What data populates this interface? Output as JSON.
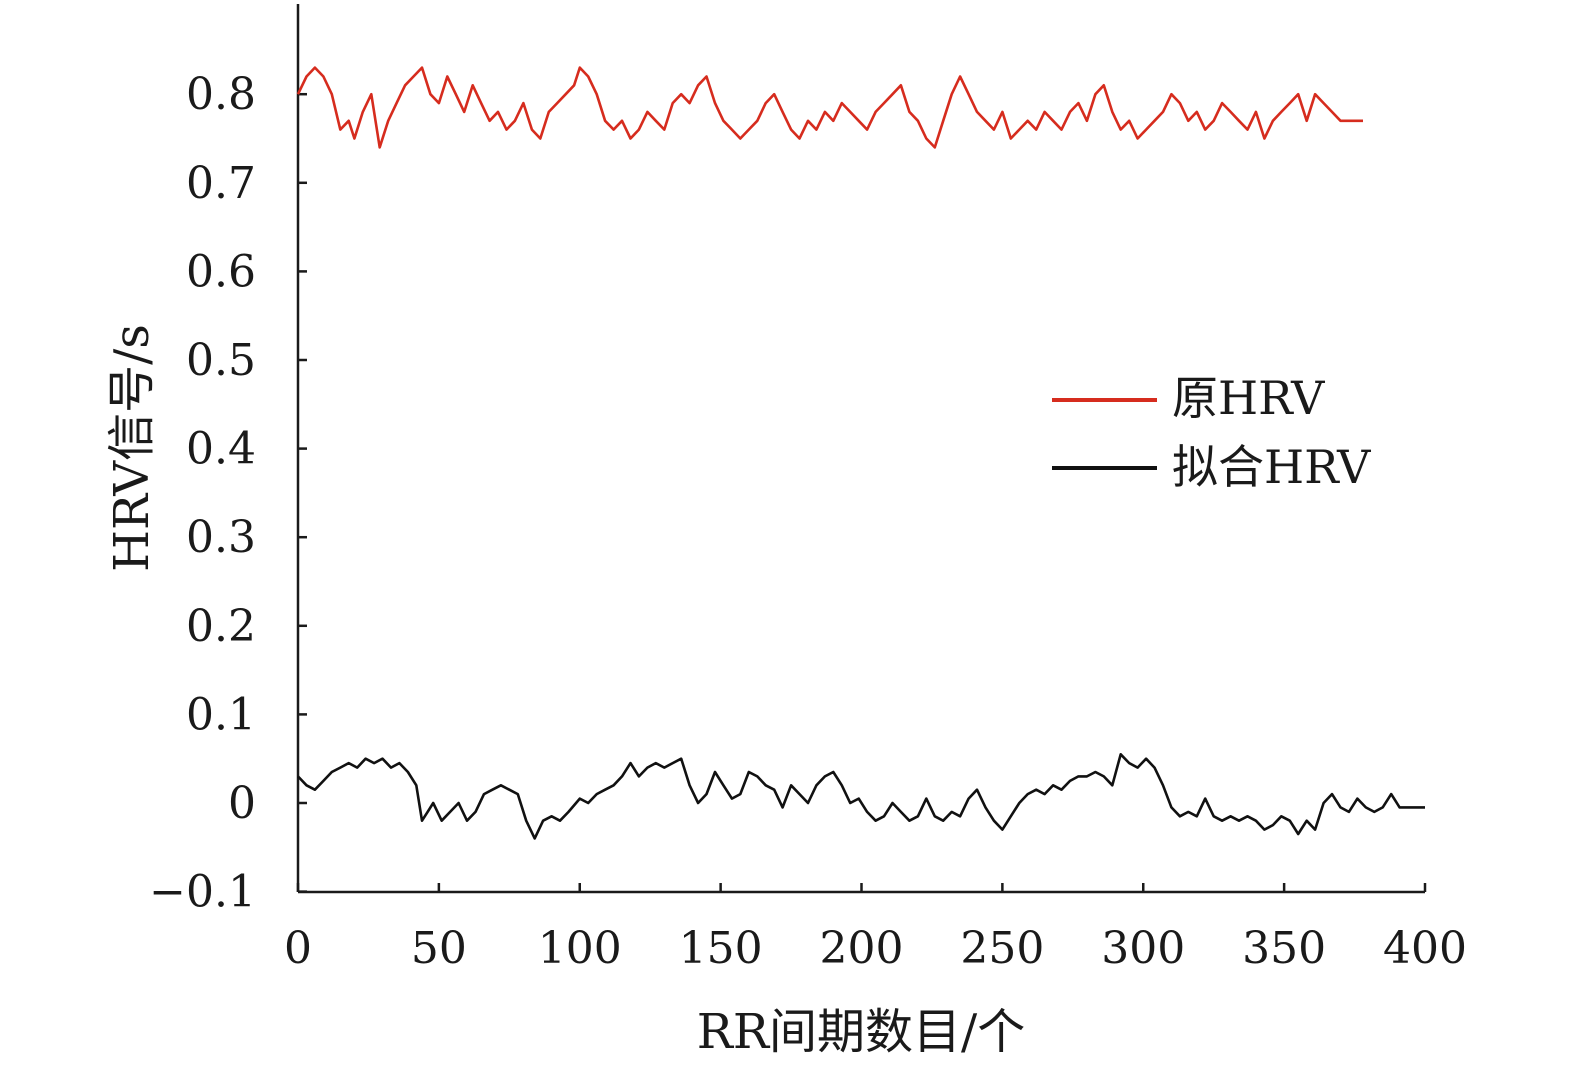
{
  "chart_data": {
    "type": "line",
    "title": "",
    "xlabel": "RR间期数目/个",
    "ylabel": "HRV信号/s",
    "xlim": [
      0,
      400
    ],
    "ylim": [
      -0.1,
      0.9
    ],
    "xticks": [
      "0",
      "50",
      "100",
      "150",
      "200",
      "250",
      "300",
      "350",
      "400"
    ],
    "yticks": [
      "−0.1",
      "0",
      "0.1",
      "0.2",
      "0.3",
      "0.4",
      "0.5",
      "0.6",
      "0.7",
      "0.8"
    ],
    "grid": false,
    "legend_position": "right-middle",
    "series": [
      {
        "name": "原HRV",
        "color": "#d62c1e",
        "x": [
          0,
          3,
          6,
          9,
          12,
          15,
          18,
          20,
          23,
          26,
          29,
          32,
          35,
          38,
          41,
          44,
          47,
          50,
          53,
          56,
          59,
          62,
          65,
          68,
          71,
          74,
          77,
          80,
          83,
          86,
          89,
          92,
          95,
          98,
          100,
          103,
          106,
          109,
          112,
          115,
          118,
          121,
          124,
          127,
          130,
          133,
          136,
          139,
          142,
          145,
          148,
          151,
          154,
          157,
          160,
          163,
          166,
          169,
          172,
          175,
          178,
          181,
          184,
          187,
          190,
          193,
          196,
          199,
          202,
          205,
          208,
          211,
          214,
          217,
          220,
          223,
          226,
          229,
          232,
          235,
          238,
          241,
          244,
          247,
          250,
          253,
          256,
          259,
          262,
          265,
          268,
          271,
          274,
          277,
          280,
          283,
          286,
          289,
          292,
          295,
          298,
          301,
          304,
          307,
          310,
          313,
          316,
          319,
          322,
          325,
          328,
          331,
          334,
          337,
          340,
          343,
          346,
          349,
          352,
          355,
          358,
          361,
          364,
          367,
          370,
          373,
          376,
          378
        ],
        "values": [
          0.8,
          0.82,
          0.83,
          0.82,
          0.8,
          0.76,
          0.77,
          0.75,
          0.78,
          0.8,
          0.74,
          0.77,
          0.79,
          0.81,
          0.82,
          0.83,
          0.8,
          0.79,
          0.82,
          0.8,
          0.78,
          0.81,
          0.79,
          0.77,
          0.78,
          0.76,
          0.77,
          0.79,
          0.76,
          0.75,
          0.78,
          0.79,
          0.8,
          0.81,
          0.83,
          0.82,
          0.8,
          0.77,
          0.76,
          0.77,
          0.75,
          0.76,
          0.78,
          0.77,
          0.76,
          0.79,
          0.8,
          0.79,
          0.81,
          0.82,
          0.79,
          0.77,
          0.76,
          0.75,
          0.76,
          0.77,
          0.79,
          0.8,
          0.78,
          0.76,
          0.75,
          0.77,
          0.76,
          0.78,
          0.77,
          0.79,
          0.78,
          0.77,
          0.76,
          0.78,
          0.79,
          0.8,
          0.81,
          0.78,
          0.77,
          0.75,
          0.74,
          0.77,
          0.8,
          0.82,
          0.8,
          0.78,
          0.77,
          0.76,
          0.78,
          0.75,
          0.76,
          0.77,
          0.76,
          0.78,
          0.77,
          0.76,
          0.78,
          0.79,
          0.77,
          0.8,
          0.81,
          0.78,
          0.76,
          0.77,
          0.75,
          0.76,
          0.77,
          0.78,
          0.8,
          0.79,
          0.77,
          0.78,
          0.76,
          0.77,
          0.79,
          0.78,
          0.77,
          0.76,
          0.78,
          0.75,
          0.77,
          0.78,
          0.79,
          0.8,
          0.77,
          0.8,
          0.79,
          0.78,
          0.77,
          0.77,
          0.77,
          0.77
        ]
      },
      {
        "name": "拟合HRV",
        "color": "#111111",
        "x": [
          0,
          3,
          6,
          9,
          12,
          15,
          18,
          21,
          24,
          27,
          30,
          33,
          36,
          39,
          42,
          44,
          46,
          48,
          51,
          54,
          57,
          60,
          63,
          66,
          69,
          72,
          75,
          78,
          81,
          84,
          87,
          90,
          93,
          96,
          100,
          103,
          106,
          109,
          112,
          115,
          118,
          121,
          124,
          127,
          130,
          133,
          136,
          139,
          142,
          145,
          148,
          151,
          154,
          157,
          160,
          163,
          166,
          169,
          172,
          175,
          178,
          181,
          184,
          187,
          190,
          193,
          196,
          199,
          202,
          205,
          208,
          211,
          214,
          217,
          220,
          223,
          226,
          229,
          232,
          235,
          238,
          241,
          244,
          247,
          250,
          253,
          256,
          259,
          262,
          265,
          268,
          271,
          274,
          277,
          280,
          283,
          286,
          289,
          292,
          295,
          298,
          301,
          304,
          307,
          310,
          313,
          316,
          319,
          322,
          325,
          328,
          331,
          334,
          337,
          340,
          343,
          346,
          349,
          352,
          355,
          358,
          361,
          364,
          367,
          370,
          373,
          376,
          379,
          382,
          385,
          388,
          391,
          394,
          397,
          400
        ],
        "values": [
          0.03,
          0.02,
          0.015,
          0.025,
          0.035,
          0.04,
          0.045,
          0.04,
          0.05,
          0.045,
          0.05,
          0.04,
          0.045,
          0.035,
          0.02,
          -0.02,
          -0.01,
          0.0,
          -0.02,
          -0.01,
          0.0,
          -0.02,
          -0.01,
          0.01,
          0.015,
          0.02,
          0.015,
          0.01,
          -0.02,
          -0.04,
          -0.02,
          -0.015,
          -0.02,
          -0.01,
          0.005,
          0.0,
          0.01,
          0.015,
          0.02,
          0.03,
          0.045,
          0.03,
          0.04,
          0.045,
          0.04,
          0.045,
          0.05,
          0.02,
          0.0,
          0.01,
          0.035,
          0.02,
          0.005,
          0.01,
          0.035,
          0.03,
          0.02,
          0.015,
          -0.005,
          0.02,
          0.01,
          0.0,
          0.02,
          0.03,
          0.035,
          0.02,
          0.0,
          0.005,
          -0.01,
          -0.02,
          -0.015,
          0.0,
          -0.01,
          -0.02,
          -0.015,
          0.005,
          -0.015,
          -0.02,
          -0.01,
          -0.015,
          0.005,
          0.015,
          -0.005,
          -0.02,
          -0.03,
          -0.015,
          0.0,
          0.01,
          0.015,
          0.01,
          0.02,
          0.015,
          0.025,
          0.03,
          0.03,
          0.035,
          0.03,
          0.02,
          0.055,
          0.045,
          0.04,
          0.05,
          0.04,
          0.02,
          -0.005,
          -0.015,
          -0.01,
          -0.015,
          0.005,
          -0.015,
          -0.02,
          -0.015,
          -0.02,
          -0.015,
          -0.02,
          -0.03,
          -0.025,
          -0.015,
          -0.02,
          -0.035,
          -0.02,
          -0.03,
          0.0,
          0.01,
          -0.005,
          -0.01,
          0.005,
          -0.005,
          -0.01,
          -0.005,
          0.01,
          -0.005,
          -0.005,
          -0.005,
          -0.005
        ]
      }
    ]
  }
}
